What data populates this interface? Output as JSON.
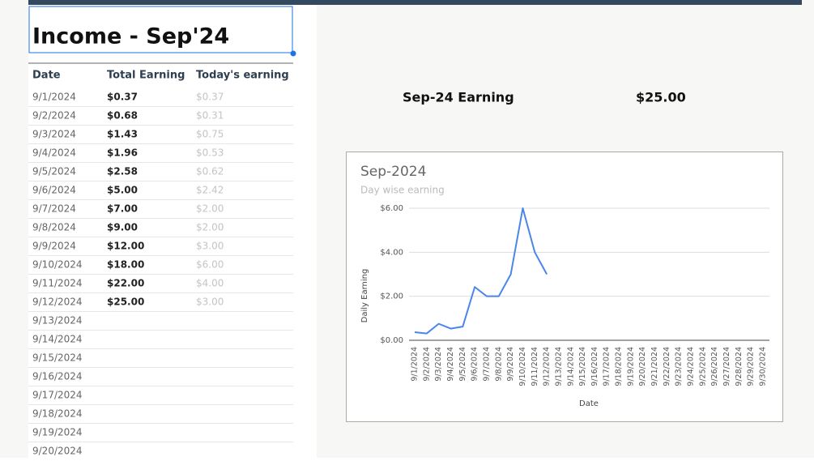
{
  "sheet": {
    "title": "Income - Sep'24",
    "table": {
      "columns": [
        "Date",
        "Total Earning",
        "Today's earning"
      ],
      "rows": [
        [
          "9/1/2024",
          "$0.37",
          "$0.37"
        ],
        [
          "9/2/2024",
          "$0.68",
          "$0.31"
        ],
        [
          "9/3/2024",
          "$1.43",
          "$0.75"
        ],
        [
          "9/4/2024",
          "$1.96",
          "$0.53"
        ],
        [
          "9/5/2024",
          "$2.58",
          "$0.62"
        ],
        [
          "9/6/2024",
          "$5.00",
          "$2.42"
        ],
        [
          "9/7/2024",
          "$7.00",
          "$2.00"
        ],
        [
          "9/8/2024",
          "$9.00",
          "$2.00"
        ],
        [
          "9/9/2024",
          "$12.00",
          "$3.00"
        ],
        [
          "9/10/2024",
          "$18.00",
          "$6.00"
        ],
        [
          "9/11/2024",
          "$22.00",
          "$4.00"
        ],
        [
          "9/12/2024",
          "$25.00",
          "$3.00"
        ],
        [
          "9/13/2024"
        ],
        [
          "9/14/2024"
        ],
        [
          "9/15/2024"
        ],
        [
          "9/16/2024"
        ],
        [
          "9/17/2024"
        ],
        [
          "9/18/2024"
        ],
        [
          "9/19/2024"
        ],
        [
          "9/20/2024"
        ]
      ]
    },
    "summary": {
      "label": "Sep-24 Earning",
      "value": "$25.00"
    }
  },
  "chart_data": {
    "type": "line",
    "title": "Sep-2024",
    "subtitle": "Day wise earning",
    "y_label": "Daily Earning",
    "x_label": "Date",
    "categories": [
      "9/1/2024",
      "9/2/2024",
      "9/3/2024",
      "9/4/2024",
      "9/5/2024",
      "9/6/2024",
      "9/7/2024",
      "9/8/2024",
      "9/9/2024",
      "9/10/2024",
      "9/11/2024",
      "9/12/2024",
      "9/13/2024",
      "9/14/2024",
      "9/15/2024",
      "9/16/2024",
      "9/17/2024",
      "9/18/2024",
      "9/19/2024",
      "9/20/2024",
      "9/21/2024",
      "9/22/2024",
      "9/23/2024",
      "9/24/2024",
      "9/25/2024",
      "9/26/2024",
      "9/27/2024",
      "9/28/2024",
      "9/29/2024",
      "9/30/2024"
    ],
    "values": [
      0.37,
      0.31,
      0.75,
      0.53,
      0.62,
      2.42,
      2.0,
      2.0,
      3.0,
      6.0,
      4.0,
      3.0,
      null,
      null,
      null,
      null,
      null,
      null,
      null,
      null,
      null,
      null,
      null,
      null,
      null,
      null,
      null,
      null,
      null,
      null
    ],
    "color": "#4a86e8",
    "ylim": [
      0,
      6
    ],
    "yticks": [
      {
        "value": 0,
        "label": "$0.00"
      },
      {
        "value": 2,
        "label": "$2.00"
      },
      {
        "value": 4,
        "label": "$4.00"
      },
      {
        "value": 6,
        "label": "$6.00"
      }
    ],
    "grid": true
  }
}
